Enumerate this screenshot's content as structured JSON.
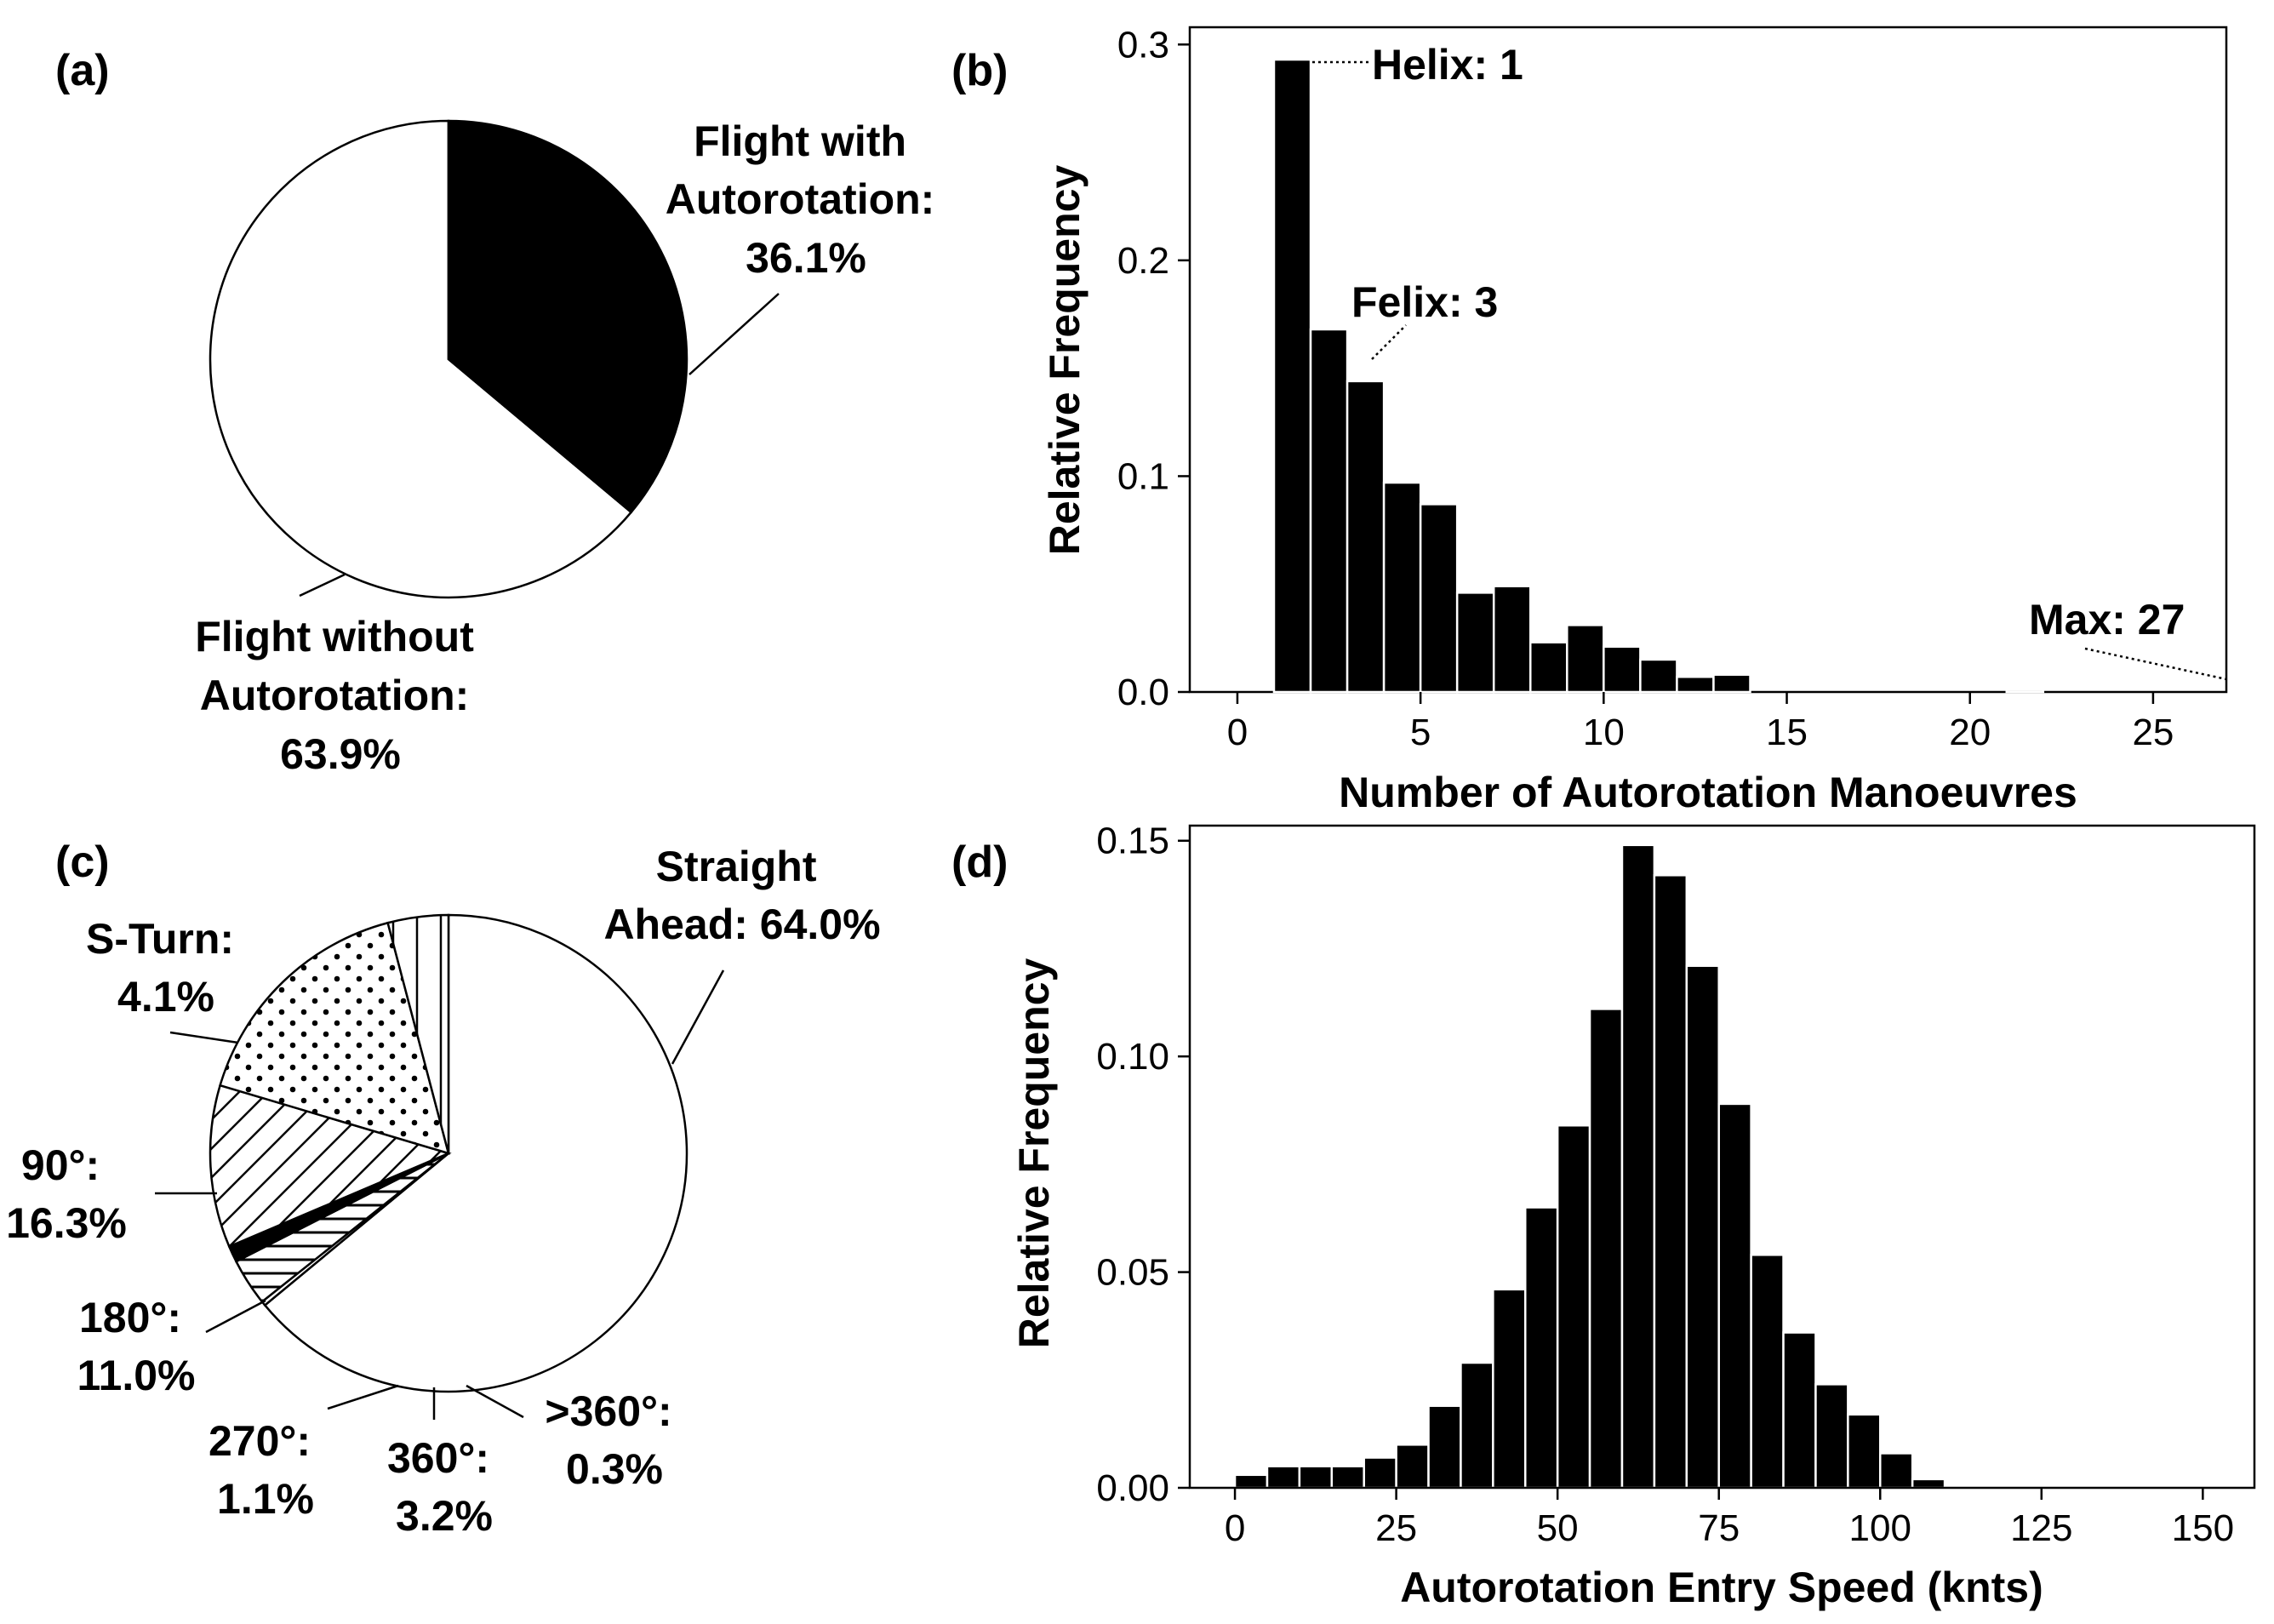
{
  "panels": {
    "a": "(a)",
    "b": "(b)",
    "c": "(c)",
    "d": "(d)"
  },
  "chart_data": [
    {
      "id": "a",
      "type": "pie",
      "labels": [
        "Flight with Autorotation",
        "Flight without Autorotation"
      ],
      "values": [
        36.1,
        63.9
      ],
      "annotations": {
        "with": [
          "Flight with",
          "Autorotation:",
          "36.1%"
        ],
        "without": [
          "Flight without",
          "Autorotation:",
          "63.9%"
        ]
      },
      "colors": {
        "with": "#000000",
        "without": "#ffffff"
      }
    },
    {
      "id": "b",
      "type": "bar",
      "x": [
        1,
        2,
        3,
        4,
        5,
        6,
        7,
        8,
        9,
        10,
        11,
        12,
        13,
        21
      ],
      "values": [
        0.293,
        0.168,
        0.144,
        0.097,
        0.087,
        0.046,
        0.049,
        0.023,
        0.031,
        0.021,
        0.015,
        0.007,
        0.008,
        0.001
      ],
      "xlabel": "Number of Autorotation Manoeuvres",
      "ylabel": "Relative Frequency",
      "xlim": [
        -1.3,
        27
      ],
      "ylim": [
        0,
        0.308
      ],
      "xticks": [
        "0",
        "5",
        "10",
        "15",
        "20",
        "25"
      ],
      "yticks": [
        "0.0",
        "0.1",
        "0.2",
        "0.3"
      ],
      "annotations": {
        "helix": "Helix: 1",
        "felix": "Felix: 3",
        "max": "Max: 27"
      }
    },
    {
      "id": "c",
      "type": "pie",
      "slices": [
        {
          "name": "Straight Ahead",
          "value": 64.0,
          "pattern": "white"
        },
        {
          "name": ">360°",
          "value": 0.3,
          "pattern": "white"
        },
        {
          "name": "360°",
          "value": 3.2,
          "pattern": "hlines"
        },
        {
          "name": "270°",
          "value": 1.1,
          "pattern": "solid"
        },
        {
          "name": "180°",
          "value": 11.0,
          "pattern": "diag"
        },
        {
          "name": "90°",
          "value": 16.3,
          "pattern": "dots"
        },
        {
          "name": "S-Turn",
          "value": 4.1,
          "pattern": "vlines"
        }
      ],
      "annotations": {
        "straight": [
          "Straight",
          "Ahead: 64.0%"
        ],
        "sturn": [
          "S-Turn:",
          "4.1%"
        ],
        "ninety": [
          "90°:",
          "16.3%"
        ],
        "oneeighty": [
          "180°:",
          "11.0%"
        ],
        "twoseventy": [
          "270°:",
          "1.1%"
        ],
        "threesixty": [
          "360°:",
          "3.2%"
        ],
        "over360": [
          ">360°:",
          "0.3%"
        ]
      }
    },
    {
      "id": "d",
      "type": "bar",
      "x": [
        2.5,
        7.5,
        12.5,
        17.5,
        22.5,
        27.5,
        32.5,
        37.5,
        42.5,
        47.5,
        52.5,
        57.5,
        62.5,
        67.5,
        72.5,
        77.5,
        82.5,
        87.5,
        92.5,
        97.5,
        102.5,
        107.5
      ],
      "values": [
        0.003,
        0.005,
        0.005,
        0.005,
        0.007,
        0.01,
        0.019,
        0.029,
        0.046,
        0.065,
        0.084,
        0.111,
        0.149,
        0.142,
        0.121,
        0.089,
        0.054,
        0.036,
        0.024,
        0.017,
        0.008,
        0.002
      ],
      "bin_width": 5,
      "xlabel": "Autorotation Entry Speed (knts)",
      "ylabel": "Relative Frequency",
      "xlim": [
        -7,
        158
      ],
      "ylim": [
        0,
        0.1535
      ],
      "xticks": [
        "0",
        "25",
        "50",
        "75",
        "100",
        "125",
        "150"
      ],
      "yticks": [
        "0.00",
        "0.05",
        "0.10",
        "0.15"
      ]
    }
  ]
}
